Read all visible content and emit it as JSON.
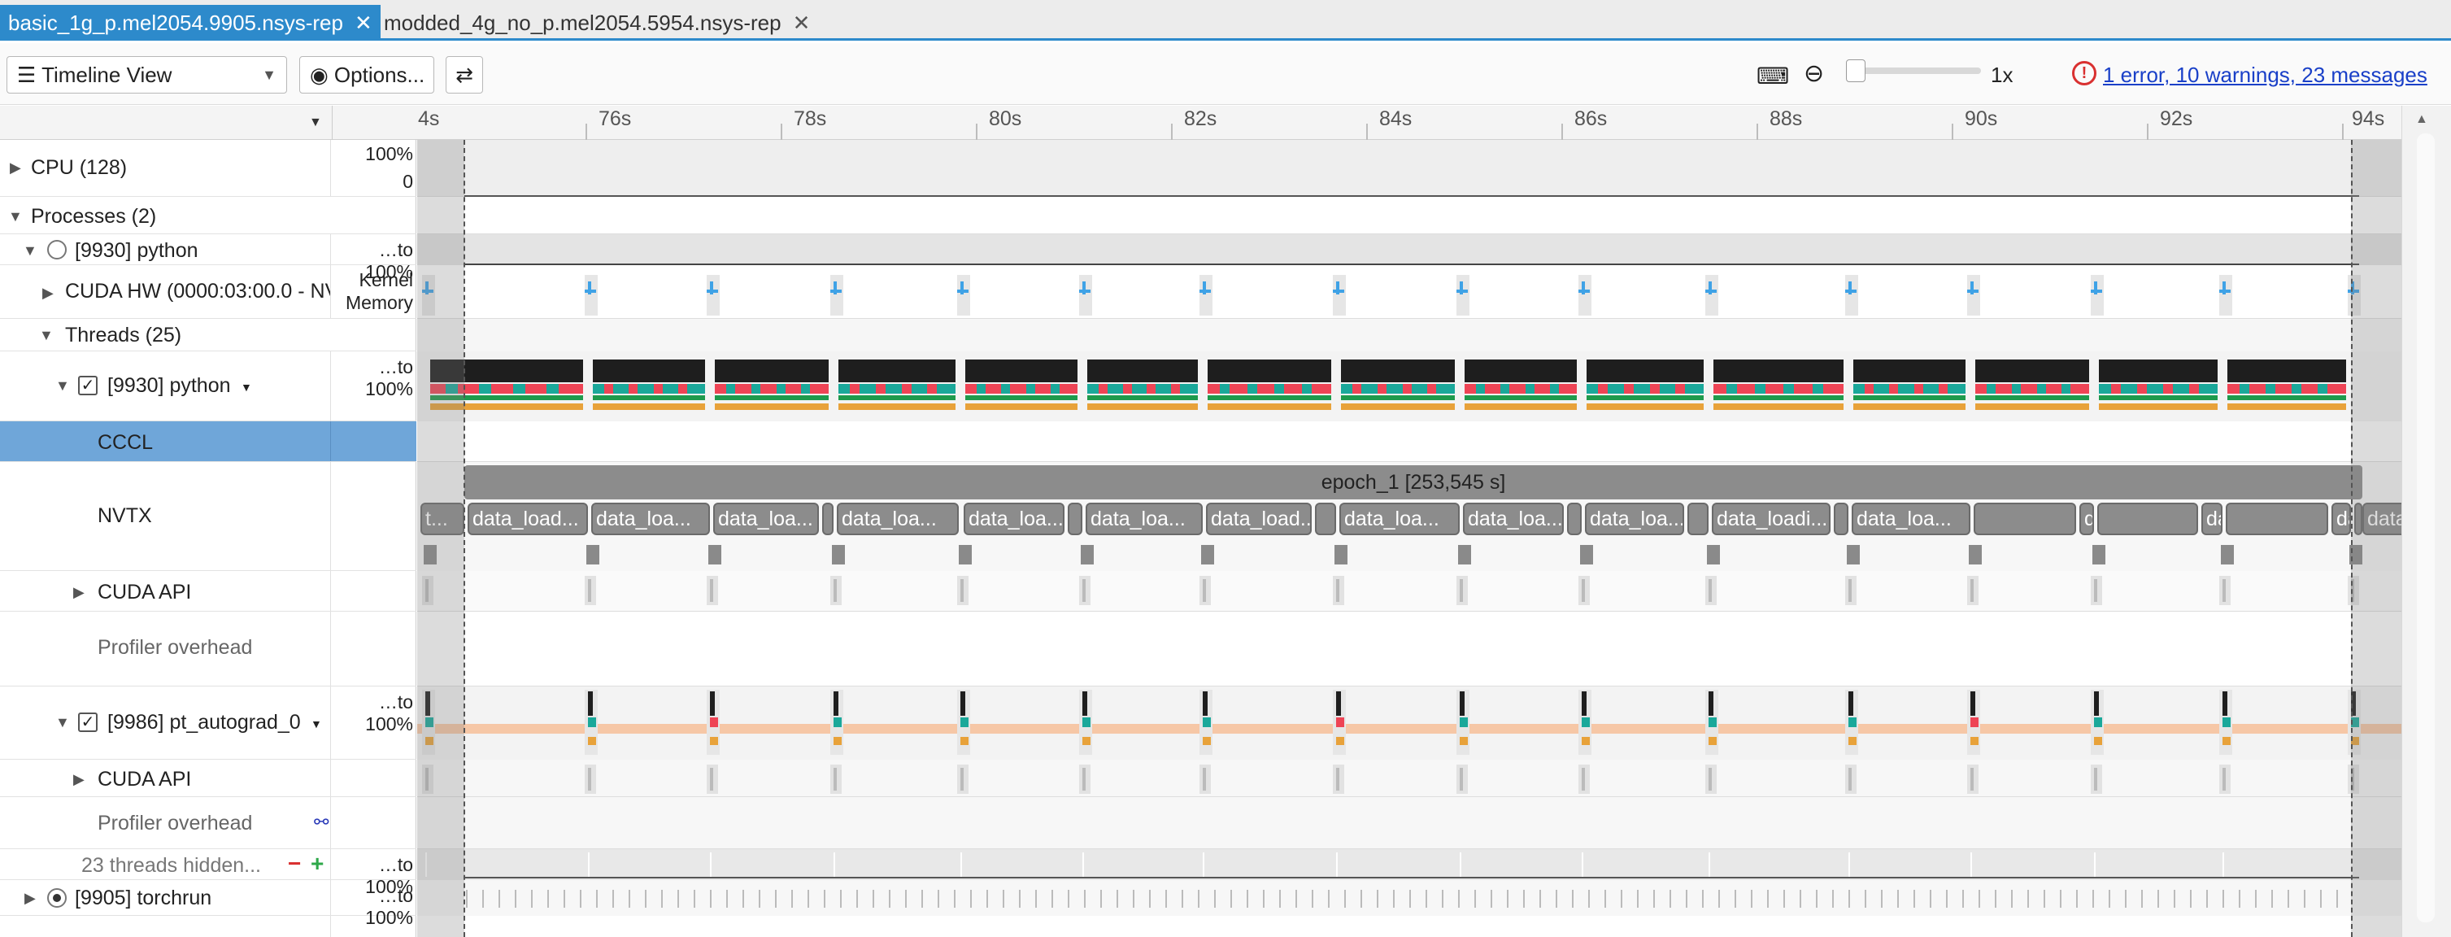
{
  "tabs": [
    {
      "label": "basic_1g_p.mel2054.9905.nsys-rep",
      "active": true
    },
    {
      "label": "modded_4g_no_p.mel2054.5954.nsys-rep",
      "active": false
    }
  ],
  "toolbar": {
    "view_select": "Timeline View",
    "options_label": "Options...",
    "zoom_label": "1x",
    "diagnostics_label": "1 error, 10 warnings, 23 messages"
  },
  "ruler": {
    "labels": [
      "4s",
      "76s",
      "78s",
      "80s",
      "82s",
      "84s",
      "86s",
      "88s",
      "90s",
      "92s",
      "94s"
    ]
  },
  "rows": {
    "cpu": {
      "label": "CPU (128)",
      "scale_top": "100%",
      "scale_bottom": "0"
    },
    "processes": {
      "label": "Processes (2)"
    },
    "python_proc": {
      "label": "[9930] python",
      "scale": "…to 100%"
    },
    "cuda_hw": {
      "label": "CUDA HW (0000:03:00.0 - NV",
      "scale_top": "Kernel",
      "scale_bottom": "Memory"
    },
    "threads": {
      "label": "Threads (25)"
    },
    "python_thread": {
      "label": "[9930] python",
      "scale": "…to 100%"
    },
    "cccl": {
      "label": "CCCL"
    },
    "nvtx": {
      "label": "NVTX"
    },
    "cuda_api": {
      "label": "CUDA API"
    },
    "profiler_overhead": {
      "label": "Profiler overhead"
    },
    "autograd": {
      "label": "[9986] pt_autograd_0",
      "scale": "…to 100%"
    },
    "cuda_api2": {
      "label": "CUDA API"
    },
    "profiler_overhead2": {
      "label": "Profiler overhead"
    },
    "hidden": {
      "label": "23 threads hidden...",
      "scale": "…to 100%"
    },
    "torchrun": {
      "label": "[9905] torchrun",
      "scale": "…to 100%"
    }
  },
  "nvtx": {
    "epoch_label": "epoch_1 [253,545 s]",
    "ranges": [
      "t...",
      "data_load...",
      "data_loa...",
      "data_loa...",
      "",
      "data_loa...",
      "data_loa...",
      "",
      "data_loa...",
      "data_load...",
      "",
      "data_loa...",
      "data_loa...",
      "",
      "data_loa...",
      "",
      "data_loadi...",
      "",
      "data_loa...",
      "",
      "data_loa...",
      "",
      "data_loa...",
      "",
      "data_load...",
      "",
      "data_loadin...",
      "",
      "d..."
    ]
  },
  "colors": {
    "accent": "#2d8acb",
    "cpu_black": "#1e1e1e",
    "thread_red": "#ee4455",
    "thread_teal": "#1aa89a",
    "thread_green": "#1e9a4c",
    "thread_orange": "#e8a23a",
    "cuda_blue": "#3fa2e6",
    "autograd_peach": "#f6c7a6",
    "selected_row": "#6fa6d9",
    "error_red": "#d93030"
  }
}
